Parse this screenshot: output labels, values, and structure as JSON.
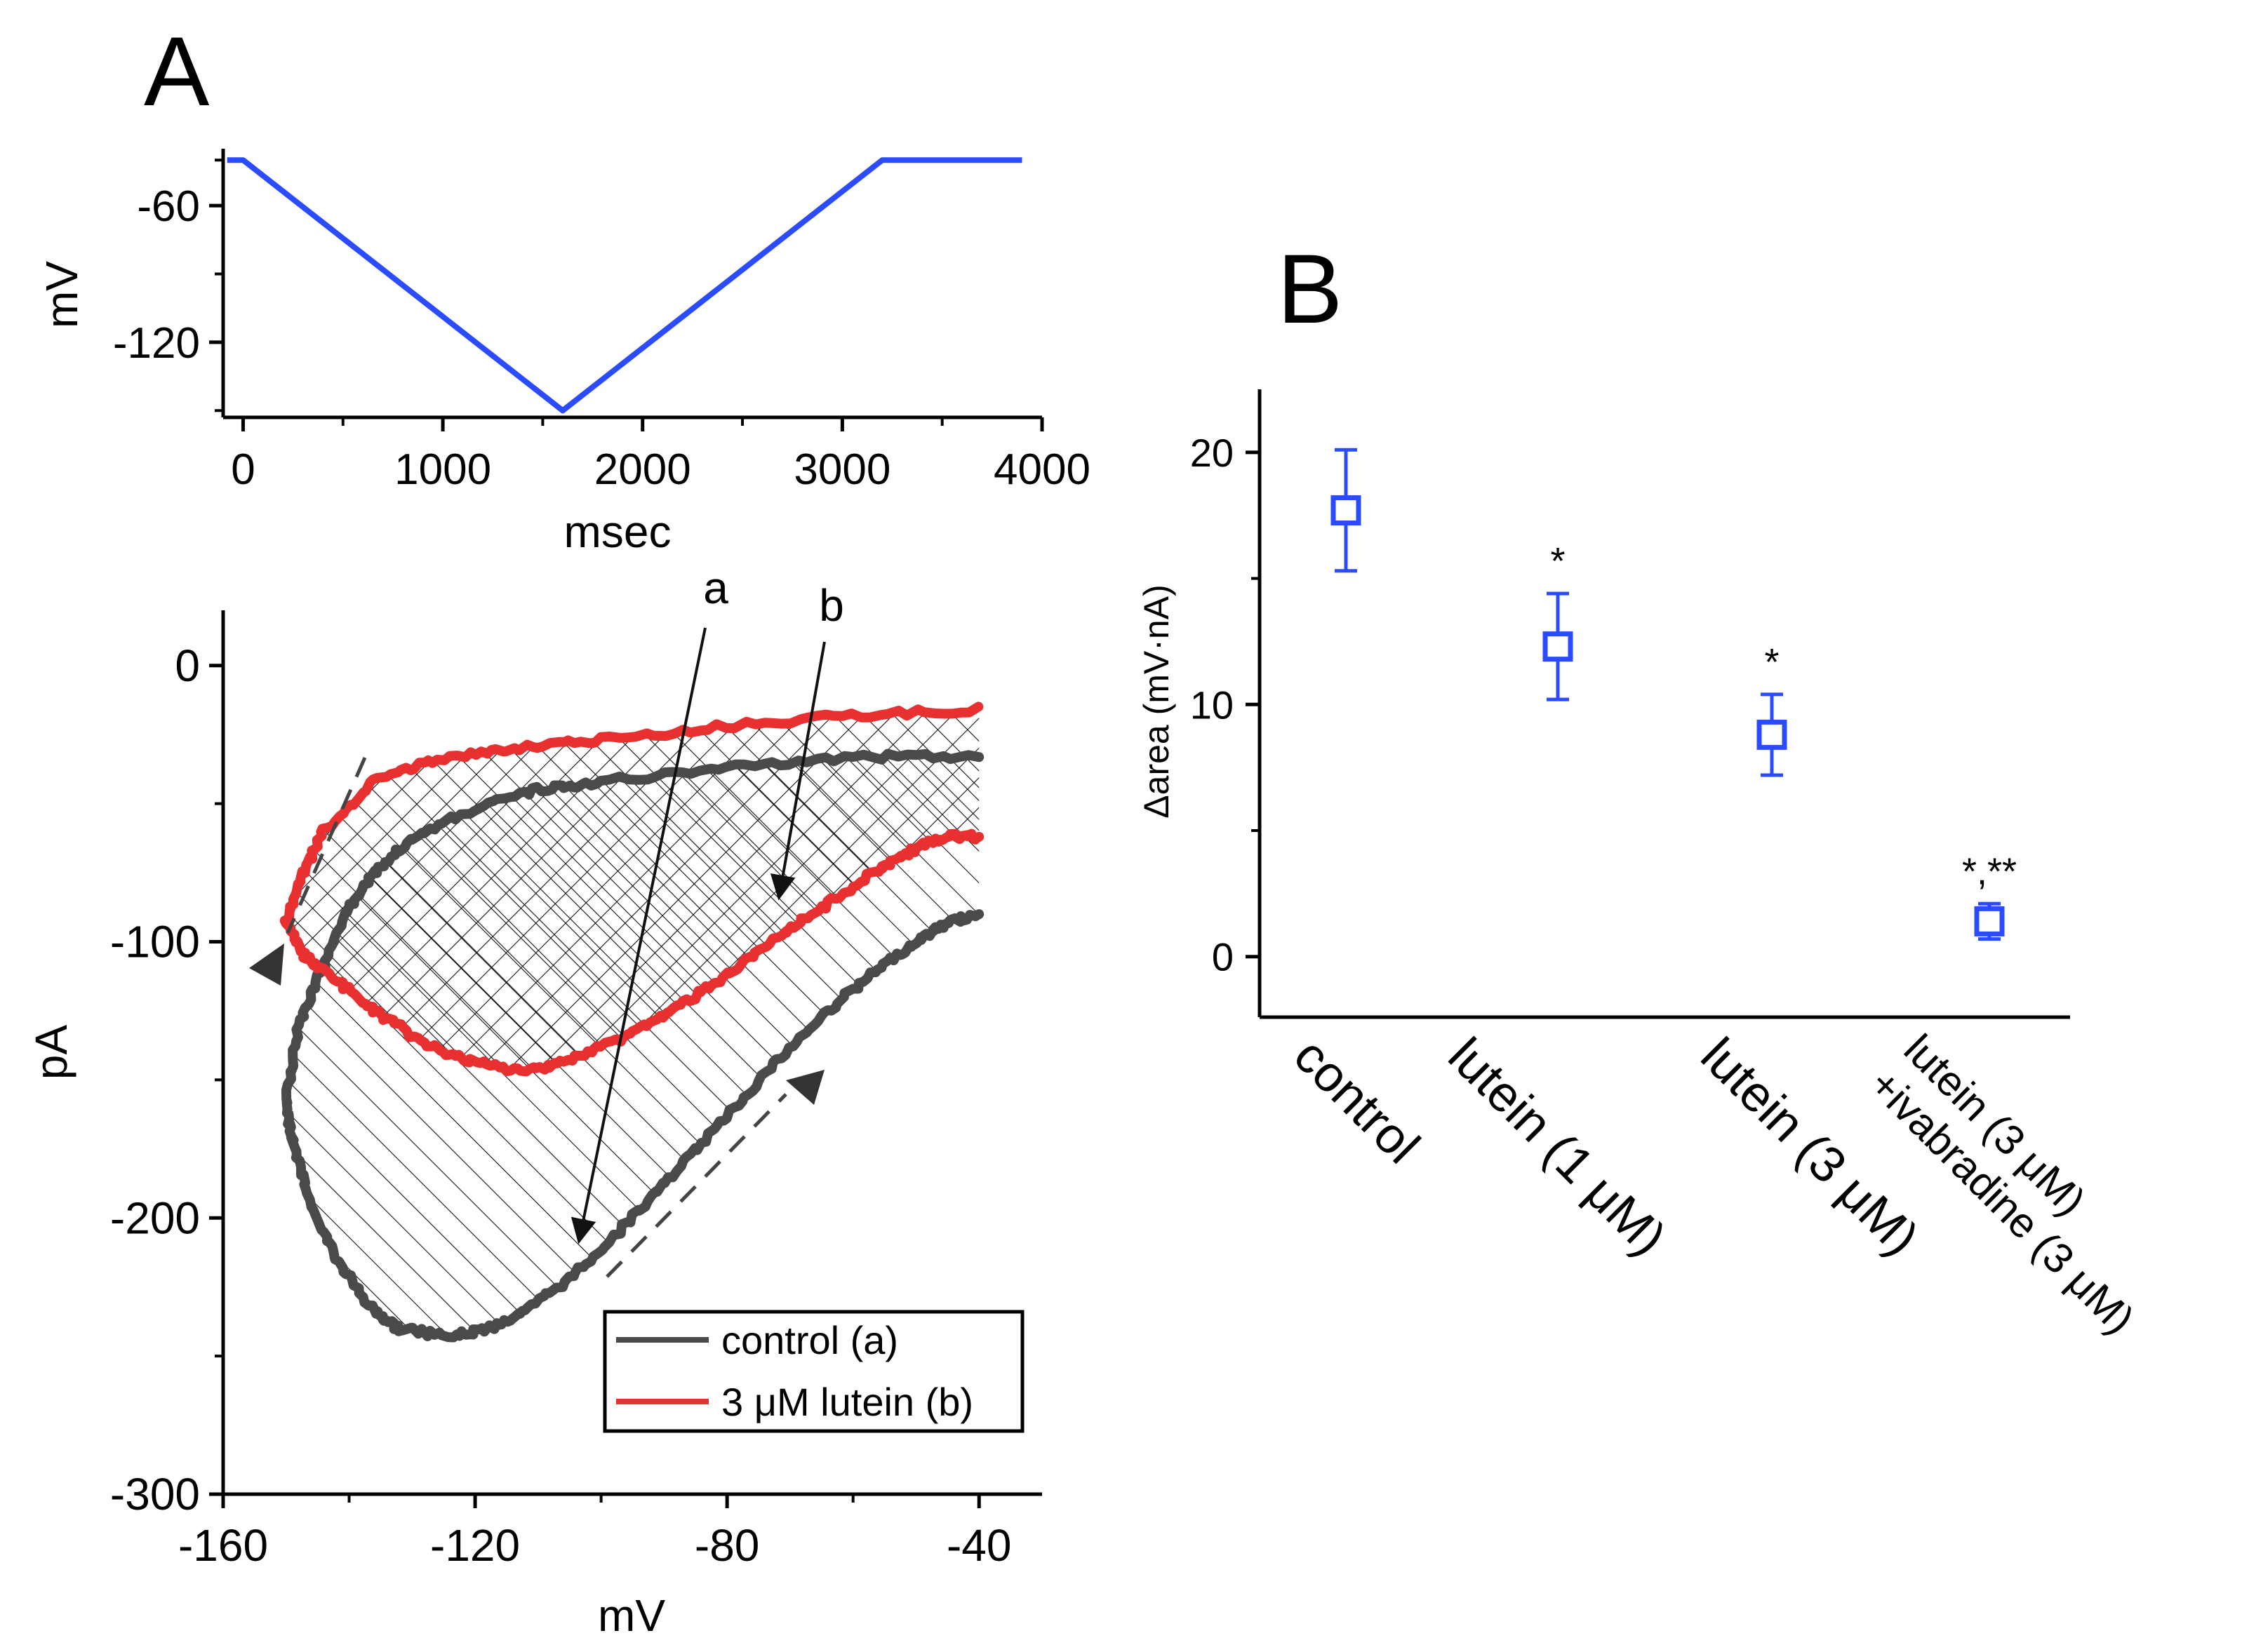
{
  "panel_labels": {
    "a": "A",
    "b": "B"
  },
  "colors": {
    "ramp": "#2b4bff",
    "control": "#4a4a4a",
    "lutein": "#e83030",
    "points": "#2b4bff",
    "arrow": "#3a3a3a"
  },
  "chart_data": [
    {
      "id": "A-top",
      "type": "line",
      "xlabel": "msec",
      "ylabel": "mV",
      "xlim": [
        -100,
        4000
      ],
      "ylim": [
        -153,
        -35
      ],
      "xticks": [
        0,
        1000,
        2000,
        3000,
        4000
      ],
      "yticks": [
        -60,
        -120
      ],
      "series": [
        {
          "points": [
            [
              -80,
              -40
            ],
            [
              0,
              -40
            ],
            [
              1600,
              -150
            ],
            [
              3200,
              -40
            ],
            [
              3900,
              -40
            ]
          ]
        }
      ]
    },
    {
      "id": "A-bottom",
      "type": "line",
      "xlabel": "mV",
      "ylabel": "pA",
      "xlim": [
        -160,
        -30
      ],
      "ylim": [
        -300,
        20
      ],
      "xticks": [
        -160,
        -120,
        -80,
        -40
      ],
      "yticks": [
        0,
        -100,
        -200,
        -300
      ],
      "annotations": [
        {
          "text": "a"
        },
        {
          "text": "b"
        }
      ],
      "legend": {
        "position": "bottom-right"
      },
      "series": [
        {
          "name": "control (a)",
          "points": [
            [
              -40,
              -33
            ],
            [
              -60,
              -33
            ],
            [
              -80,
              -37
            ],
            [
              -100,
              -42
            ],
            [
              -110,
              -45
            ],
            [
              -120,
              -52
            ],
            [
              -130,
              -62
            ],
            [
              -136,
              -75
            ],
            [
              -140,
              -88
            ],
            [
              -144,
              -108
            ],
            [
              -148,
              -130
            ],
            [
              -150,
              -158
            ],
            [
              -149,
              -172
            ],
            [
              -146,
              -195
            ],
            [
              -142,
              -215
            ],
            [
              -136,
              -234
            ],
            [
              -132,
              -240
            ],
            [
              -124,
              -243
            ],
            [
              -118,
              -240
            ],
            [
              -112,
              -234
            ],
            [
              -104,
              -220
            ],
            [
              -96,
              -202
            ],
            [
              -88,
              -183
            ],
            [
              -80,
              -163
            ],
            [
              -72,
              -143
            ],
            [
              -64,
              -125
            ],
            [
              -56,
              -110
            ],
            [
              -50,
              -100
            ],
            [
              -45,
              -93
            ],
            [
              -40,
              -90
            ]
          ]
        },
        {
          "name": "3 μM lutein (b)",
          "points": [
            [
              -40,
              -16
            ],
            [
              -60,
              -18
            ],
            [
              -80,
              -22
            ],
            [
              -100,
              -27
            ],
            [
              -114,
              -30
            ],
            [
              -126,
              -34
            ],
            [
              -136,
              -42
            ],
            [
              -144,
              -60
            ],
            [
              -148,
              -78
            ],
            [
              -150,
              -93
            ],
            [
              -147,
              -105
            ],
            [
              -142,
              -114
            ],
            [
              -136,
              -125
            ],
            [
              -128,
              -137
            ],
            [
              -120,
              -144
            ],
            [
              -112,
              -147
            ],
            [
              -104,
              -142
            ],
            [
              -96,
              -134
            ],
            [
              -88,
              -124
            ],
            [
              -80,
              -112
            ],
            [
              -72,
              -99
            ],
            [
              -64,
              -86
            ],
            [
              -56,
              -74
            ],
            [
              -50,
              -66
            ],
            [
              -45,
              -62
            ],
            [
              -40,
              -62
            ]
          ]
        }
      ]
    },
    {
      "id": "B",
      "type": "scatter",
      "xlabel": "",
      "ylabel": "Δarea (mV·nA)",
      "ylim": [
        -2.4,
        22.5
      ],
      "yticks": [
        0,
        10,
        20
      ],
      "categories": [
        "control",
        "lutein (1 μM)",
        "lutein (3 μM)",
        "lutein (3 μM) +ivabradine (3 μM)"
      ],
      "category_label_lines": [
        [
          "control"
        ],
        [
          "lutein (1 μM)"
        ],
        [
          "lutein (3 μM)"
        ],
        [
          "lutein (3 μM)",
          "+ivabradine (3 μM)"
        ]
      ],
      "values": [
        17.7,
        12.3,
        8.8,
        1.4
      ],
      "error": [
        2.4,
        2.1,
        1.6,
        0.7
      ],
      "significance": [
        "",
        "*",
        "*",
        "*,**"
      ]
    }
  ]
}
